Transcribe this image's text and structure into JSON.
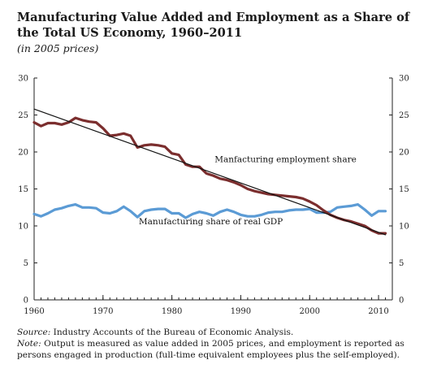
{
  "header": {
    "title": "Manufacturing Value Added and Employment as a Share of the Total US Economy, 1960–2011",
    "subtitle": "(in 2005 prices)"
  },
  "notes": {
    "source_label": "Source:",
    "source_text": " Industry Accounts of the Bureau of Economic Analysis.",
    "note_label": "Note:",
    "note_text": " Output is measured as value added in 2005 prices, and employment is reported as persons engaged in production (full-time equivalent employees plus the self-employed)."
  },
  "colors": {
    "employment": "#7b2e2e",
    "gdp": "#5b9bd5",
    "trend": "#111111",
    "axis": "#222222"
  },
  "chart_data": {
    "type": "line",
    "xlim": [
      1960,
      2012
    ],
    "ylim": [
      0,
      30
    ],
    "x_ticks": [
      1960,
      1970,
      1980,
      1990,
      2000,
      2010
    ],
    "y_ticks": [
      0,
      5,
      10,
      15,
      20,
      25,
      30
    ],
    "right_axis": true,
    "grid": false,
    "annotations": [
      {
        "text": "Manfacturing employment share",
        "x": 1986.2,
        "y": 18.6
      },
      {
        "text": "Manufacturing share of real GDP",
        "x": 1975.2,
        "y": 10.2
      }
    ],
    "series": [
      {
        "name": "Manfacturing employment share",
        "x": [
          1960,
          1961,
          1962,
          1963,
          1964,
          1965,
          1966,
          1967,
          1968,
          1969,
          1970,
          1971,
          1972,
          1973,
          1974,
          1975,
          1976,
          1977,
          1978,
          1979,
          1980,
          1981,
          1982,
          1983,
          1984,
          1985,
          1986,
          1987,
          1988,
          1989,
          1990,
          1991,
          1992,
          1993,
          1994,
          1995,
          1996,
          1997,
          1998,
          1999,
          2000,
          2001,
          2002,
          2003,
          2004,
          2005,
          2006,
          2007,
          2008,
          2009,
          2010,
          2011
        ],
        "values": [
          24.0,
          23.5,
          23.9,
          23.9,
          23.7,
          24.0,
          24.6,
          24.3,
          24.1,
          24.0,
          23.2,
          22.2,
          22.3,
          22.5,
          22.2,
          20.6,
          20.9,
          21.0,
          20.9,
          20.7,
          19.8,
          19.6,
          18.3,
          18.0,
          18.0,
          17.1,
          16.8,
          16.4,
          16.2,
          15.9,
          15.5,
          15.0,
          14.7,
          14.5,
          14.3,
          14.2,
          14.1,
          14.0,
          13.9,
          13.7,
          13.3,
          12.8,
          12.1,
          11.5,
          11.1,
          10.8,
          10.6,
          10.3,
          10.0,
          9.4,
          9.0,
          9.0
        ]
      },
      {
        "name": "Manufacturing share of real GDP",
        "x": [
          1960,
          1961,
          1962,
          1963,
          1964,
          1965,
          1966,
          1967,
          1968,
          1969,
          1970,
          1971,
          1972,
          1973,
          1974,
          1975,
          1976,
          1977,
          1978,
          1979,
          1980,
          1981,
          1982,
          1983,
          1984,
          1985,
          1986,
          1987,
          1988,
          1989,
          1990,
          1991,
          1992,
          1993,
          1994,
          1995,
          1996,
          1997,
          1998,
          1999,
          2000,
          2001,
          2002,
          2003,
          2004,
          2005,
          2006,
          2007,
          2008,
          2009,
          2010,
          2011
        ],
        "values": [
          11.6,
          11.3,
          11.7,
          12.2,
          12.4,
          12.7,
          12.9,
          12.5,
          12.5,
          12.4,
          11.8,
          11.7,
          12.0,
          12.6,
          12.0,
          11.2,
          12.0,
          12.2,
          12.3,
          12.3,
          11.7,
          11.7,
          11.1,
          11.6,
          11.9,
          11.7,
          11.4,
          11.9,
          12.2,
          11.9,
          11.5,
          11.3,
          11.3,
          11.5,
          11.8,
          11.9,
          11.9,
          12.1,
          12.2,
          12.2,
          12.3,
          11.8,
          11.8,
          11.9,
          12.5,
          12.6,
          12.7,
          12.9,
          12.2,
          11.4,
          12.0,
          12.0
        ]
      },
      {
        "name": "",
        "x": [
          1960,
          2011
        ],
        "values": [
          25.8,
          8.8
        ]
      }
    ]
  }
}
